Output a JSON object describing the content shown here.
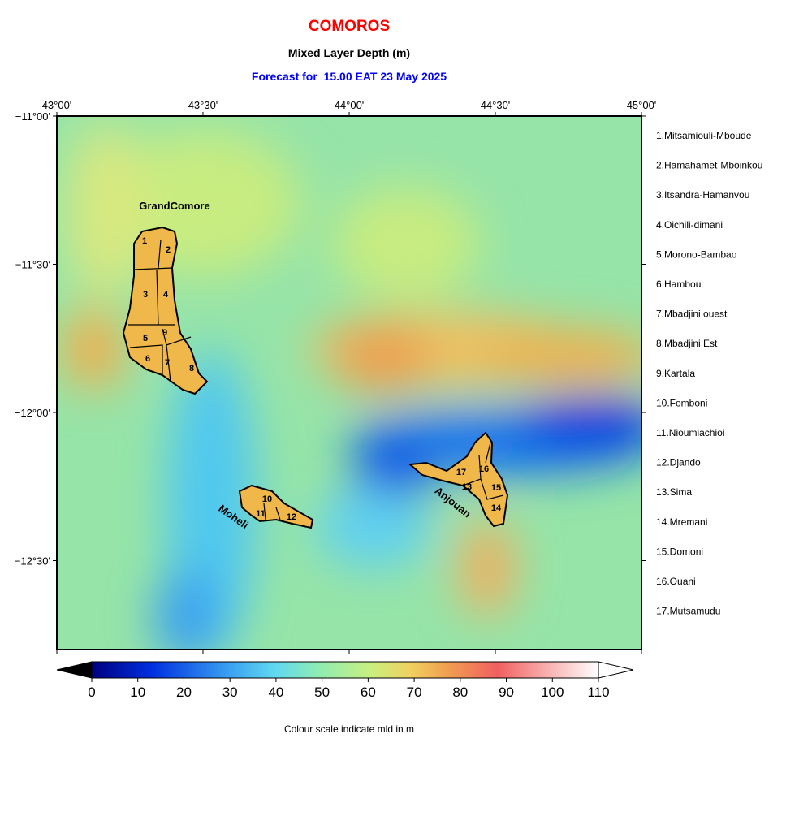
{
  "header": {
    "title": "COMOROS",
    "subtitle": "Mixed Layer Depth (m)",
    "forecast": "Forecast for  15.00 EAT 23 May 2025"
  },
  "map": {
    "xlim": [
      43,
      45
    ],
    "ylim": [
      -12.8,
      -11
    ],
    "xticks": [
      {
        "value": 43,
        "label": "43°00'"
      },
      {
        "value": 43.5,
        "label": "43°30'"
      },
      {
        "value": 44,
        "label": "44°00'"
      },
      {
        "value": 44.5,
        "label": "44°30'"
      },
      {
        "value": 45,
        "label": "45°00'"
      }
    ],
    "yticks": [
      {
        "value": -11,
        "label": "−11°00'"
      },
      {
        "value": -11.5,
        "label": "−11°30'"
      },
      {
        "value": -12,
        "label": "−12°00'"
      },
      {
        "value": -12.5,
        "label": "−12°30'"
      }
    ],
    "islands": [
      "GrandComore",
      "Moheli",
      "Anjouan"
    ],
    "district_numbers": [
      "1",
      "2",
      "3",
      "4",
      "5",
      "6",
      "7",
      "8",
      "9",
      "10",
      "11",
      "12",
      "13",
      "14",
      "15",
      "16",
      "17"
    ]
  },
  "legend": [
    "1.Mitsamiouli-Mboude",
    "2.Hamahamet-Mboinkou",
    "3.Itsandra-Hamanvou",
    "4.Oichili-dimani",
    "5.Morono-Bambao",
    "6.Hambou",
    "7.Mbadjini ouest",
    "8.Mbadjini Est",
    "9.Kartala",
    "10.Fomboni",
    "11.Nioumiachioi",
    "12.Djando",
    "13.Sima",
    "14.Mremani",
    "15.Domoni",
    "16.Ouani",
    "17.Mutsamudu"
  ],
  "colorbar": {
    "lim": [
      0,
      110
    ],
    "ticks": [
      0,
      10,
      20,
      30,
      40,
      50,
      60,
      70,
      80,
      90,
      100,
      110
    ],
    "caption": "Colour scale indicate mld in m"
  }
}
